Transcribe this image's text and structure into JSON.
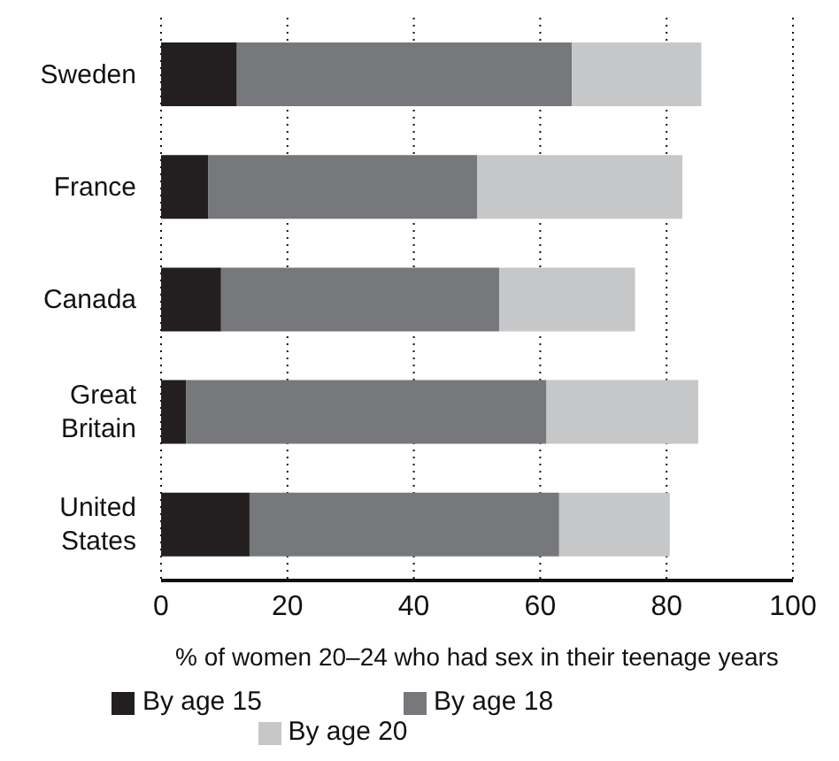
{
  "chart_data": {
    "type": "bar",
    "orientation": "horizontal",
    "stacked": true,
    "xlabel": "% of women 20–24 who had sex in their teenage years",
    "categories": [
      "Sweden",
      "France",
      "Canada",
      "Great Britain",
      "United States"
    ],
    "series": [
      {
        "name": "By age 15",
        "color": "#231f20",
        "values": [
          12,
          7.5,
          9.5,
          4,
          14
        ]
      },
      {
        "name": "By age 18",
        "color": "#77787b",
        "values": [
          53,
          42.5,
          44,
          57,
          49
        ]
      },
      {
        "name": "By age 20",
        "color": "#c6c7c8",
        "values": [
          20.5,
          32.5,
          21.5,
          24,
          17.5
        ]
      }
    ],
    "xlim": [
      0,
      100
    ],
    "xticks": [
      0,
      20,
      40,
      60,
      80,
      100
    ],
    "grid": "x",
    "legend": "bottom"
  }
}
